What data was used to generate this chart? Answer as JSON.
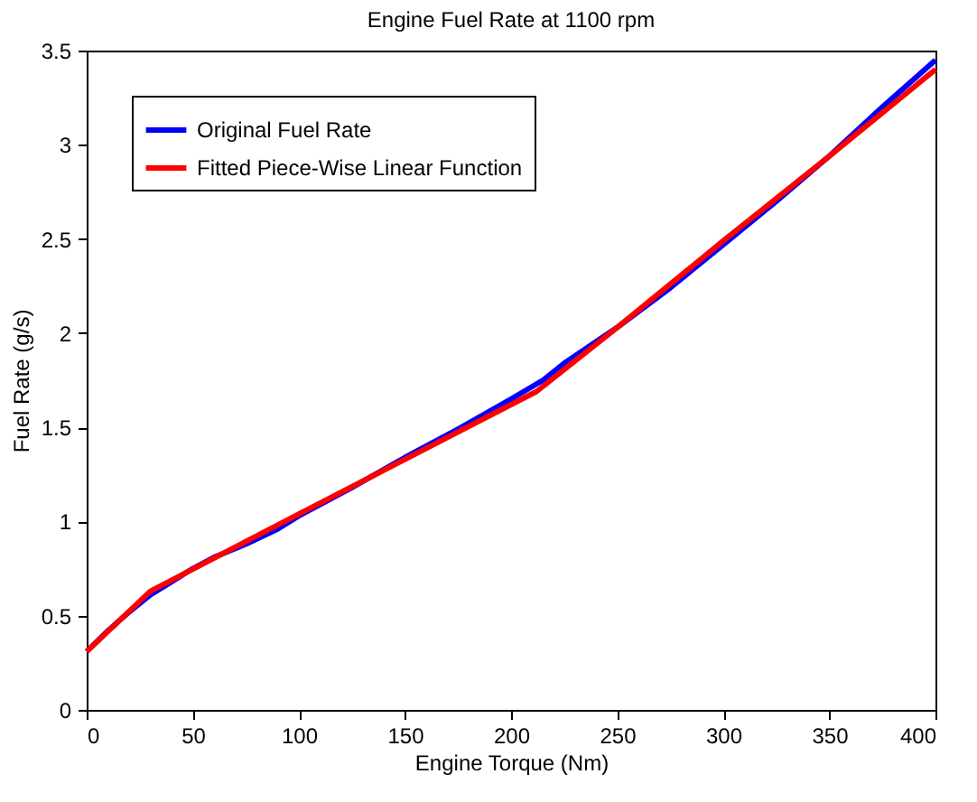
{
  "chart_data": {
    "type": "line",
    "title": "Engine Fuel Rate at 1100 rpm",
    "xlabel": "Engine Torque (Nm)",
    "ylabel": "Fuel Rate (g/s)",
    "xlim": [
      0,
      400
    ],
    "xticks": [
      0,
      50,
      100,
      150,
      200,
      250,
      300,
      350,
      400
    ],
    "ylim": [
      0,
      3.5
    ],
    "yticks": [
      0,
      0.5,
      1,
      1.5,
      2,
      2.5,
      3,
      3.5
    ],
    "grid": false,
    "legend": "top left",
    "marker": "none",
    "line_style": "solid",
    "series": [
      {
        "name": "Original Fuel Rate",
        "color": "#0000ff",
        "x": [
          0,
          10,
          20,
          30,
          40,
          50,
          60,
          75,
          90,
          100,
          125,
          150,
          175,
          200,
          215,
          225,
          250,
          275,
          300,
          325,
          350,
          375,
          400
        ],
        "values": [
          0.31,
          0.42,
          0.52,
          0.61,
          0.68,
          0.75,
          0.81,
          0.88,
          0.96,
          1.03,
          1.18,
          1.34,
          1.49,
          1.65,
          1.75,
          1.84,
          2.03,
          2.24,
          2.47,
          2.7,
          2.94,
          3.2,
          3.45
        ]
      },
      {
        "name": "Fitted Piece-Wise Linear Function",
        "color": "#ff0000",
        "x": [
          0,
          30,
          100,
          150,
          212,
          250,
          300,
          350,
          400
        ],
        "values": [
          0.31,
          0.63,
          1.04,
          1.33,
          1.69,
          2.03,
          2.49,
          2.94,
          3.4
        ]
      }
    ]
  }
}
